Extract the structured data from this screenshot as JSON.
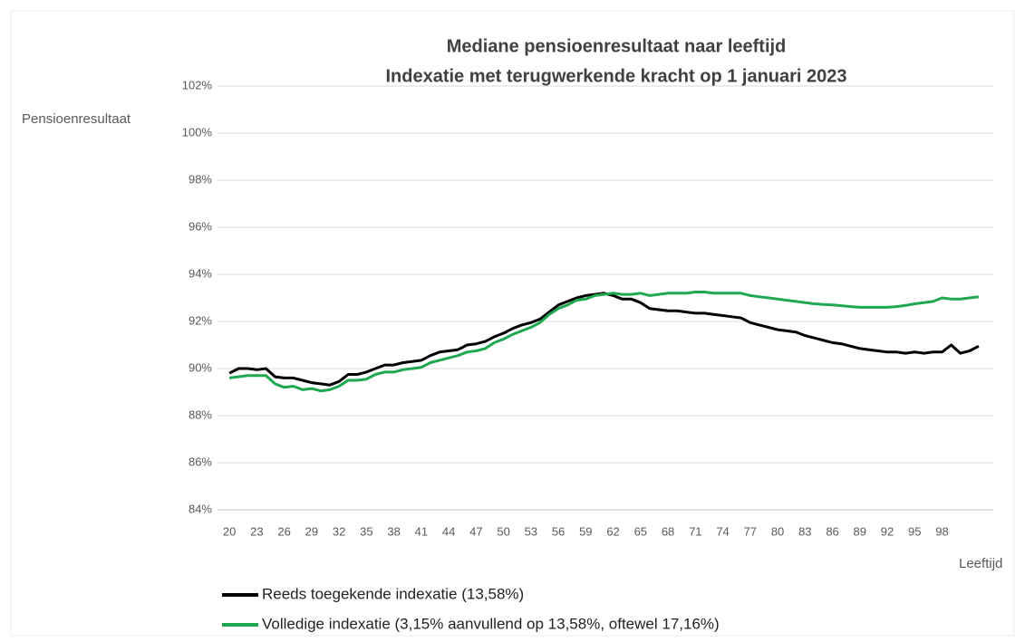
{
  "chart_data": {
    "type": "line",
    "title": "Mediane pensioenresultaat naar leeftijd",
    "subtitle": "Indexatie met terugwerkende kracht op 1 januari 2023",
    "y_label": "Pensioenresultaat",
    "x_label": "Leeftijd",
    "x": [
      20,
      21,
      22,
      23,
      24,
      25,
      26,
      27,
      28,
      29,
      30,
      31,
      32,
      33,
      34,
      35,
      36,
      37,
      38,
      39,
      40,
      41,
      42,
      43,
      44,
      45,
      46,
      47,
      48,
      49,
      50,
      51,
      52,
      53,
      54,
      55,
      56,
      57,
      58,
      59,
      60,
      61,
      62,
      63,
      64,
      65,
      66,
      67,
      68,
      69,
      70,
      71,
      72,
      73,
      74,
      75,
      76,
      77,
      78,
      79,
      80,
      81,
      82,
      83,
      84,
      85,
      86,
      87,
      88,
      89,
      90,
      91,
      92,
      93,
      94,
      95,
      96,
      97,
      98,
      99,
      100,
      101,
      102
    ],
    "series": [
      {
        "name": "Reeds toegekende indexatie (13,58%)",
        "color": "#000000",
        "values": [
          89.8,
          90.0,
          90.0,
          89.95,
          90.0,
          89.65,
          89.6,
          89.6,
          89.5,
          89.4,
          89.35,
          89.3,
          89.45,
          89.75,
          89.75,
          89.85,
          90.0,
          90.15,
          90.15,
          90.25,
          90.3,
          90.35,
          90.55,
          90.7,
          90.75,
          90.8,
          91.0,
          91.05,
          91.15,
          91.35,
          91.5,
          91.7,
          91.85,
          91.95,
          92.1,
          92.4,
          92.7,
          92.85,
          93.0,
          93.1,
          93.15,
          93.2,
          93.1,
          92.95,
          92.95,
          92.8,
          92.55,
          92.5,
          92.45,
          92.45,
          92.4,
          92.35,
          92.35,
          92.3,
          92.25,
          92.2,
          92.15,
          91.95,
          91.85,
          91.75,
          91.65,
          91.6,
          91.55,
          91.4,
          91.3,
          91.2,
          91.1,
          91.05,
          90.95,
          90.85,
          90.8,
          90.75,
          90.7,
          90.7,
          90.65,
          90.7,
          90.65,
          90.7,
          90.7,
          91.0,
          90.65,
          90.75,
          90.95
        ]
      },
      {
        "name": "Volledige indexatie (3,15% aanvullend op 13,58%, oftewel 17,16%)",
        "color": "#1fa84f",
        "values": [
          89.6,
          89.65,
          89.7,
          89.7,
          89.7,
          89.35,
          89.2,
          89.25,
          89.1,
          89.15,
          89.05,
          89.1,
          89.25,
          89.5,
          89.5,
          89.55,
          89.75,
          89.85,
          89.85,
          89.95,
          90.0,
          90.05,
          90.25,
          90.35,
          90.45,
          90.55,
          90.7,
          90.75,
          90.85,
          91.1,
          91.25,
          91.45,
          91.6,
          91.75,
          91.95,
          92.3,
          92.55,
          92.7,
          92.9,
          92.95,
          93.1,
          93.15,
          93.2,
          93.15,
          93.15,
          93.2,
          93.1,
          93.15,
          93.2,
          93.2,
          93.2,
          93.25,
          93.25,
          93.2,
          93.2,
          93.2,
          93.2,
          93.1,
          93.05,
          93.0,
          92.95,
          92.9,
          92.85,
          92.8,
          92.75,
          92.72,
          92.7,
          92.67,
          92.63,
          92.6,
          92.6,
          92.6,
          92.6,
          92.63,
          92.68,
          92.75,
          92.8,
          92.85,
          93.0,
          92.95,
          92.95,
          93.0,
          93.05
        ]
      }
    ],
    "xlim": [
      18.7,
      103.6
    ],
    "xticks": [
      20,
      23,
      26,
      29,
      32,
      35,
      38,
      41,
      44,
      47,
      50,
      53,
      56,
      59,
      62,
      65,
      68,
      71,
      74,
      77,
      80,
      83,
      86,
      89,
      92,
      95,
      98
    ],
    "ylim": [
      84,
      102
    ],
    "yticks": [
      {
        "value": 84,
        "label": "84%"
      },
      {
        "value": 86,
        "label": "86%"
      },
      {
        "value": 88,
        "label": "88%"
      },
      {
        "value": 90,
        "label": "90%"
      },
      {
        "value": 92,
        "label": "92%"
      },
      {
        "value": 94,
        "label": "94%"
      },
      {
        "value": 96,
        "label": "96%"
      },
      {
        "value": 98,
        "label": "98%"
      },
      {
        "value": 100,
        "label": "100%"
      },
      {
        "value": 102,
        "label": "102%"
      }
    ],
    "grid": true,
    "legend": "bottom"
  }
}
